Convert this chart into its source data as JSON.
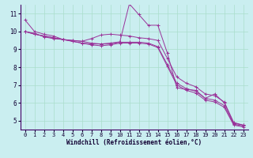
{
  "xlabel": "Windchill (Refroidissement éolien,°C)",
  "background_color": "#caeef0",
  "grid_color": "#aaddcc",
  "line_color": "#993399",
  "xlim": [
    -0.5,
    23.5
  ],
  "ylim": [
    4.5,
    11.5
  ],
  "xticks": [
    0,
    1,
    2,
    3,
    4,
    5,
    6,
    7,
    8,
    9,
    10,
    11,
    12,
    13,
    14,
    15,
    16,
    17,
    18,
    19,
    20,
    21,
    22,
    23
  ],
  "yticks": [
    5,
    6,
    7,
    8,
    9,
    10,
    11
  ],
  "lines": [
    {
      "x": [
        0,
        1,
        2,
        3,
        4,
        5,
        6,
        7,
        8,
        9,
        10,
        11,
        12,
        13,
        14,
        15,
        16,
        17,
        18,
        19,
        20,
        21,
        22,
        23
      ],
      "y": [
        10.65,
        10.0,
        9.85,
        9.75,
        9.55,
        9.5,
        9.45,
        9.35,
        9.3,
        9.35,
        9.42,
        11.55,
        10.95,
        10.35,
        10.35,
        8.8,
        6.85,
        6.75,
        6.7,
        6.25,
        6.5,
        6.0,
        4.85,
        4.75
      ]
    },
    {
      "x": [
        0,
        1,
        2,
        3,
        4,
        5,
        6,
        7,
        8,
        9,
        10,
        11,
        12,
        13,
        14,
        15,
        16,
        17,
        18,
        19,
        20,
        21,
        22,
        23
      ],
      "y": [
        10.0,
        9.9,
        9.7,
        9.6,
        9.55,
        9.5,
        9.45,
        9.6,
        9.8,
        9.85,
        9.8,
        9.75,
        9.65,
        9.6,
        9.5,
        8.5,
        7.45,
        7.1,
        6.9,
        6.5,
        6.4,
        6.05,
        4.9,
        4.75
      ]
    },
    {
      "x": [
        0,
        1,
        2,
        3,
        4,
        5,
        6,
        7,
        8,
        9,
        10,
        11,
        12,
        13,
        14,
        15,
        16,
        17,
        18,
        19,
        20,
        21,
        22,
        23
      ],
      "y": [
        10.0,
        9.85,
        9.75,
        9.65,
        9.55,
        9.45,
        9.35,
        9.3,
        9.3,
        9.3,
        9.4,
        9.4,
        9.4,
        9.35,
        9.15,
        8.15,
        7.1,
        6.8,
        6.65,
        6.25,
        6.15,
        5.85,
        4.8,
        4.7
      ]
    },
    {
      "x": [
        0,
        1,
        2,
        3,
        4,
        5,
        6,
        7,
        8,
        9,
        10,
        11,
        12,
        13,
        14,
        15,
        16,
        17,
        18,
        19,
        20,
        21,
        22,
        23
      ],
      "y": [
        10.0,
        9.85,
        9.75,
        9.65,
        9.55,
        9.45,
        9.35,
        9.25,
        9.2,
        9.25,
        9.35,
        9.35,
        9.35,
        9.3,
        9.1,
        8.05,
        7.0,
        6.7,
        6.55,
        6.15,
        6.05,
        5.75,
        4.75,
        4.65
      ]
    }
  ],
  "marker": "+",
  "marker_indices": {
    "line0": [
      0,
      1,
      3,
      7,
      8,
      11,
      12,
      13,
      14,
      15,
      16,
      17,
      18,
      19,
      20,
      21,
      22,
      23
    ],
    "line1": [
      0,
      1,
      2,
      3,
      4,
      5,
      6,
      7,
      8,
      9,
      10,
      11,
      12,
      13,
      14,
      15,
      16,
      17,
      18,
      19,
      20,
      21,
      22,
      23
    ],
    "line2": [
      0,
      1,
      2,
      3,
      4,
      5,
      6,
      7,
      8,
      9,
      10,
      11,
      12,
      13,
      14,
      15,
      16,
      17,
      18,
      19,
      20,
      21,
      22,
      23
    ],
    "line3": [
      0,
      1,
      2,
      3,
      4,
      5,
      6,
      7,
      8,
      9,
      10,
      11,
      12,
      13,
      14,
      15,
      16,
      17,
      18,
      19,
      20,
      21,
      22,
      23
    ]
  }
}
